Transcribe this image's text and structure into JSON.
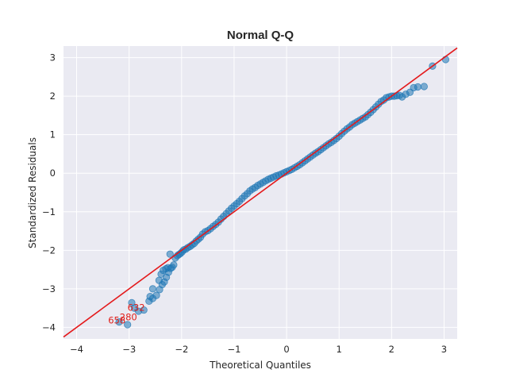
{
  "chart_data": {
    "type": "scatter",
    "title": "Normal Q-Q",
    "xlabel": "Theoretical Quantiles",
    "ylabel": "Standardized Residuals",
    "xlim": [
      -4.25,
      3.25
    ],
    "ylim": [
      -4.3,
      3.3
    ],
    "xticks": [
      -4,
      -3,
      -2,
      -1,
      0,
      1,
      2,
      3
    ],
    "xtick_labels": [
      "−4",
      "−3",
      "−2",
      "−1",
      "0",
      "1",
      "2",
      "3"
    ],
    "yticks": [
      -4,
      -3,
      -2,
      -1,
      0,
      1,
      2,
      3
    ],
    "ytick_labels": [
      "−4",
      "−3",
      "−2",
      "−1",
      "0",
      "1",
      "2",
      "3"
    ],
    "grid": true,
    "reference_line": {
      "slope": 1,
      "intercept": 0,
      "color": "#e41a1c"
    },
    "point_color": "#1f77b4",
    "annotations": [
      {
        "text": "632",
        "x": -3.03,
        "y": -3.57
      },
      {
        "text": "280",
        "x": -3.18,
        "y": -3.82
      },
      {
        "text": "658",
        "x": -3.4,
        "y": -3.9
      }
    ],
    "series": [
      {
        "x": [
          -3.03,
          -2.82,
          -2.72,
          -2.62,
          -2.55,
          -2.48,
          -2.42,
          -2.37,
          -2.33,
          -2.29,
          -2.25,
          -2.21,
          -2.18,
          -2.15,
          -2.12,
          -2.08,
          -2.05,
          -2.02,
          -1.99,
          -1.96,
          -1.92,
          -1.88,
          -1.84,
          -1.8,
          -1.76,
          -1.72,
          -1.68,
          -1.64,
          -1.6,
          -1.55,
          -1.5,
          -1.45,
          -1.4,
          -1.35,
          -1.3,
          -1.25,
          -1.2,
          -1.15,
          -1.1,
          -1.05,
          -1.0,
          -0.95,
          -0.9,
          -0.85,
          -0.8,
          -0.75,
          -0.7,
          -0.65,
          -0.6,
          -0.55,
          -0.5,
          -0.45,
          -0.4,
          -0.35,
          -0.3,
          -0.25,
          -0.2,
          -0.15,
          -0.1,
          -0.05,
          0.0,
          0.05,
          0.1,
          0.15,
          0.2,
          0.25,
          0.3,
          0.35,
          0.4,
          0.45,
          0.5,
          0.55,
          0.6,
          0.65,
          0.7,
          0.75,
          0.8,
          0.85,
          0.9,
          0.95,
          1.0,
          1.05,
          1.1,
          1.15,
          1.2,
          1.25,
          1.3,
          1.35,
          1.4,
          1.45,
          1.5,
          1.55,
          1.6,
          1.65,
          1.7,
          1.75,
          1.8,
          1.85,
          1.9,
          1.95,
          2.0,
          2.05,
          2.1,
          2.15,
          2.2,
          2.27,
          2.35,
          2.42,
          2.5,
          2.62,
          2.78,
          3.03,
          -3.19,
          -2.95,
          -2.9,
          -2.6,
          -2.55,
          -2.43,
          -2.39,
          -2.35,
          -2.3,
          -2.26,
          -2.22
        ],
        "y": [
          -3.93,
          -3.58,
          -3.55,
          -3.32,
          -3.25,
          -3.17,
          -3.02,
          -2.89,
          -2.82,
          -2.7,
          -2.57,
          -2.47,
          -2.44,
          -2.38,
          -2.2,
          -2.14,
          -2.11,
          -2.08,
          -2.04,
          -1.99,
          -1.97,
          -1.93,
          -1.9,
          -1.86,
          -1.82,
          -1.76,
          -1.71,
          -1.66,
          -1.58,
          -1.52,
          -1.49,
          -1.44,
          -1.38,
          -1.33,
          -1.27,
          -1.19,
          -1.12,
          -1.05,
          -0.98,
          -0.91,
          -0.85,
          -0.79,
          -0.73,
          -0.66,
          -0.59,
          -0.53,
          -0.46,
          -0.41,
          -0.37,
          -0.32,
          -0.28,
          -0.24,
          -0.2,
          -0.16,
          -0.13,
          -0.1,
          -0.07,
          -0.05,
          -0.02,
          0.01,
          0.04,
          0.07,
          0.1,
          0.14,
          0.18,
          0.22,
          0.27,
          0.32,
          0.37,
          0.42,
          0.47,
          0.52,
          0.56,
          0.61,
          0.66,
          0.71,
          0.76,
          0.8,
          0.85,
          0.9,
          0.96,
          1.03,
          1.09,
          1.15,
          1.2,
          1.26,
          1.3,
          1.34,
          1.38,
          1.42,
          1.46,
          1.52,
          1.58,
          1.65,
          1.72,
          1.79,
          1.86,
          1.9,
          1.96,
          1.98,
          2.0,
          2.0,
          2.01,
          2.02,
          1.98,
          2.05,
          2.1,
          2.22,
          2.24,
          2.25,
          2.78,
          2.95,
          -3.86,
          -3.36,
          -3.5,
          -3.2,
          -3.0,
          -2.78,
          -2.62,
          -2.52,
          -2.48,
          -2.45,
          -2.1
        ]
      }
    ]
  }
}
